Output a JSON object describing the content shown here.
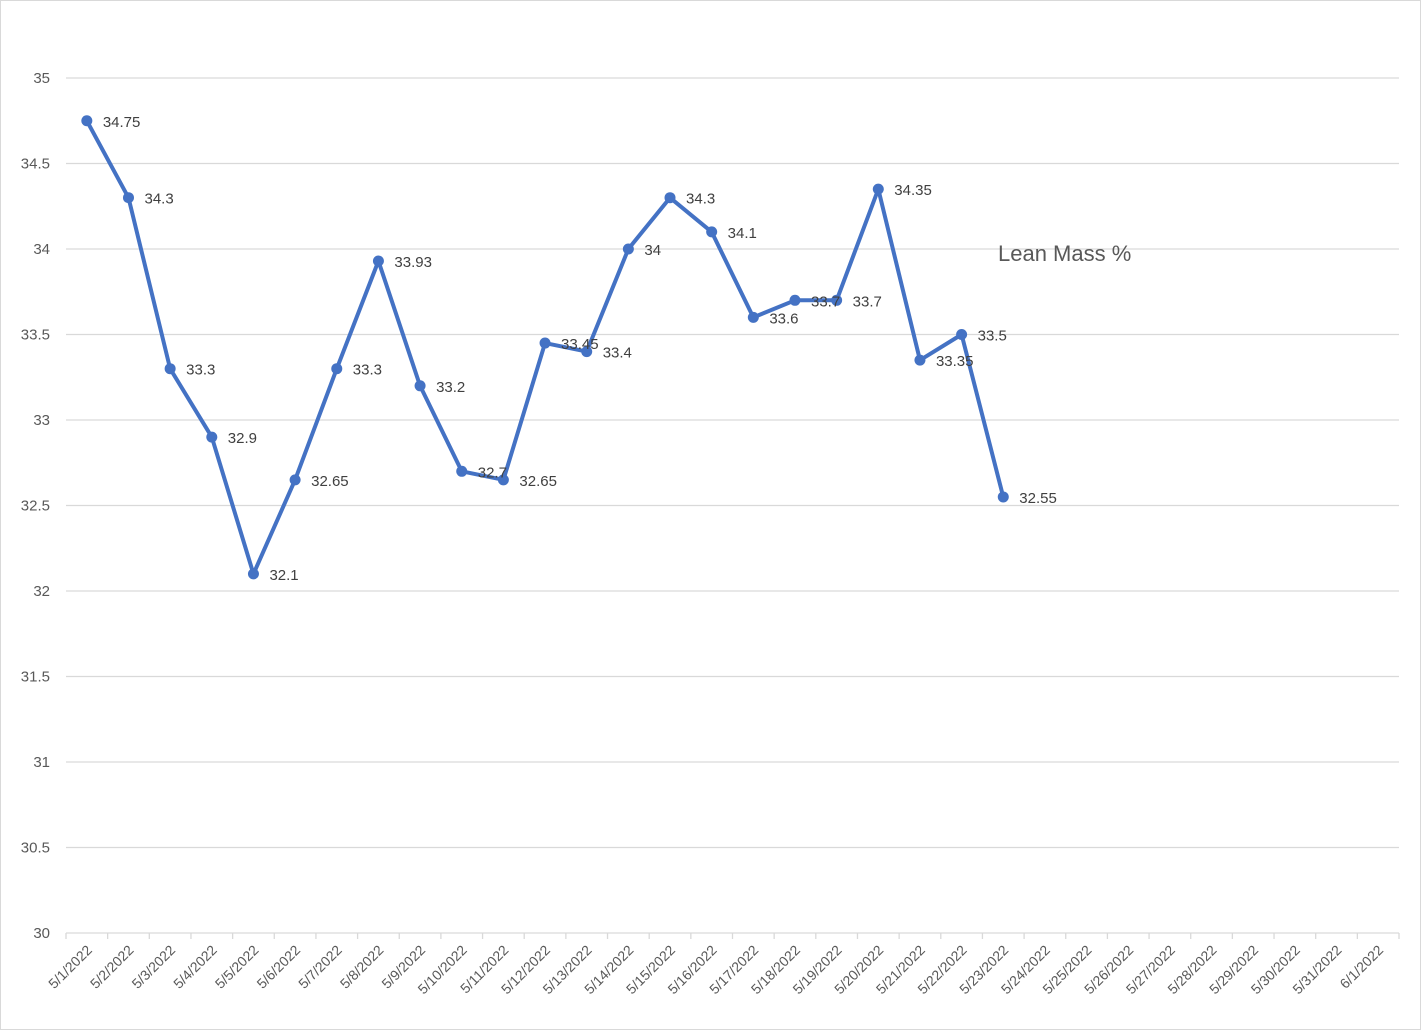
{
  "chart_data": {
    "type": "line",
    "title": "Lean Mass %",
    "xlabel": "",
    "ylabel": "",
    "ylim": [
      30,
      35
    ],
    "y_ticks": [
      "30",
      "30.5",
      "31",
      "31.5",
      "32",
      "32.5",
      "33",
      "33.5",
      "34",
      "34.5",
      "35"
    ],
    "grid": true,
    "legend": "none",
    "categories": [
      "5/1/2022",
      "5/2/2022",
      "5/3/2022",
      "5/4/2022",
      "5/5/2022",
      "5/6/2022",
      "5/7/2022",
      "5/8/2022",
      "5/9/2022",
      "5/10/2022",
      "5/11/2022",
      "5/12/2022",
      "5/13/2022",
      "5/14/2022",
      "5/15/2022",
      "5/16/2022",
      "5/17/2022",
      "5/18/2022",
      "5/19/2022",
      "5/20/2022",
      "5/21/2022",
      "5/22/2022",
      "5/23/2022",
      "5/24/2022",
      "5/25/2022",
      "5/26/2022",
      "5/27/2022",
      "5/28/2022",
      "5/29/2022",
      "5/30/2022",
      "5/31/2022",
      "6/1/2022"
    ],
    "series": [
      {
        "name": "Lean Mass %",
        "color": "#4472c4",
        "values": [
          34.75,
          34.3,
          33.3,
          32.9,
          32.1,
          32.65,
          33.3,
          33.93,
          33.2,
          32.7,
          32.65,
          33.45,
          33.4,
          34,
          34.3,
          34.1,
          33.6,
          33.7,
          33.7,
          34.35,
          33.35,
          33.5,
          32.55,
          null,
          null,
          null,
          null,
          null,
          null,
          null,
          null,
          null
        ],
        "data_labels": [
          "34.75",
          "34.3",
          "33.3",
          "32.9",
          "32.1",
          "32.65",
          "33.3",
          "33.93",
          "33.2",
          "32.7",
          "32.65",
          "33.45",
          "33.4",
          "34",
          "34.3",
          "34.1",
          "33.6",
          "33.7",
          "33.7",
          "34.35",
          "33.35",
          "33.5",
          "32.55"
        ]
      }
    ]
  },
  "colors": {
    "series": "#4472c4",
    "grid": "#d9d9d9",
    "axis_text": "#595959",
    "label_text": "#404040"
  }
}
